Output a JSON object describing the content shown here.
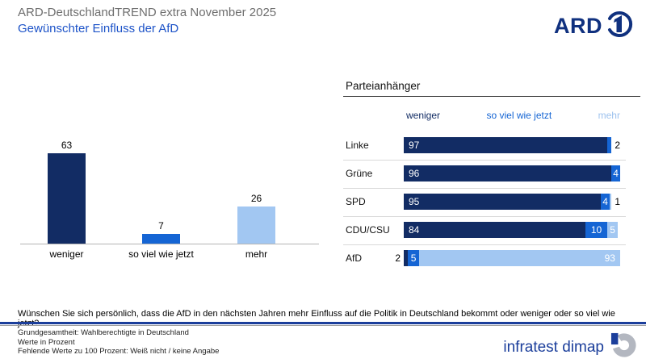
{
  "header": {
    "title": "ARD-DeutschlandTREND extra November 2025",
    "subtitle": "Gewünschter Einfluss der AfD",
    "ard_logo_text": "ARD"
  },
  "colors": {
    "weniger": "#122c64",
    "so_viel_wie_jetzt": "#1565d4",
    "mehr": "#a2c7f2",
    "header_mehr_text": "#9dc2ee",
    "accent_blue": "#1d53c8",
    "infratest_blue": "#1b3e9b",
    "ard_navy": "#10317f"
  },
  "question": "Wünschen Sie sich persönlich, dass die AfD in den nächsten Jahren mehr Einfluss auf die Politik in Deutschland bekommt oder weniger oder so viel wie jetzt?",
  "footnotes": [
    "Grundgesamtheit: Wahlberechtigte in Deutschland",
    "Werte in Prozent",
    "Fehlende Werte zu 100 Prozent: Weiß nicht / keine Angabe"
  ],
  "branding": {
    "logo_text": "infratest dimap"
  },
  "chart_data": [
    {
      "type": "bar",
      "title": "",
      "xlabel": "",
      "ylabel": "Werte in Prozent",
      "ylim": [
        0,
        70
      ],
      "grid": false,
      "categories": [
        "weniger",
        "so viel wie jetzt",
        "mehr"
      ],
      "values": [
        63,
        7,
        26
      ],
      "color_keys": [
        "weniger",
        "so_viel_wie_jetzt",
        "mehr"
      ]
    },
    {
      "type": "bar",
      "orientation": "horizontal-stacked",
      "title": "Parteianhänger",
      "legend": [
        "weniger",
        "so viel wie jetzt",
        "mehr"
      ],
      "legend_color_keys": [
        "weniger",
        "so_viel_wie_jetzt",
        "mehr"
      ],
      "xlim": [
        0,
        100
      ],
      "rows": [
        {
          "party": "Linke",
          "segments": [
            {
              "key": "weniger",
              "value": 97,
              "label": "97",
              "align": "left"
            },
            {
              "key": "so_viel_wie_jetzt",
              "value": 2,
              "label": "2",
              "align": "out-right"
            }
          ]
        },
        {
          "party": "Grüne",
          "segments": [
            {
              "key": "weniger",
              "value": 96,
              "label": "96",
              "align": "left"
            },
            {
              "key": "so_viel_wie_jetzt",
              "value": 4,
              "label": "4",
              "align": "center"
            }
          ]
        },
        {
          "party": "SPD",
          "segments": [
            {
              "key": "weniger",
              "value": 95,
              "label": "95",
              "align": "left"
            },
            {
              "key": "so_viel_wie_jetzt",
              "value": 4,
              "label": "4",
              "align": "center"
            },
            {
              "key": "mehr",
              "value": 1,
              "label": "1",
              "align": "out-right"
            }
          ]
        },
        {
          "party": "CDU/CSU",
          "segments": [
            {
              "key": "weniger",
              "value": 84,
              "label": "84",
              "align": "left"
            },
            {
              "key": "so_viel_wie_jetzt",
              "value": 10,
              "label": "10",
              "align": "center"
            },
            {
              "key": "mehr",
              "value": 5,
              "label": "5",
              "align": "center"
            }
          ]
        },
        {
          "party": "AfD",
          "segments": [
            {
              "key": "weniger",
              "value": 2,
              "label": "2",
              "align": "out-left"
            },
            {
              "key": "so_viel_wie_jetzt",
              "value": 5,
              "label": "5",
              "align": "center"
            },
            {
              "key": "mehr",
              "value": 93,
              "label": "93",
              "align": "right"
            }
          ]
        }
      ]
    }
  ]
}
